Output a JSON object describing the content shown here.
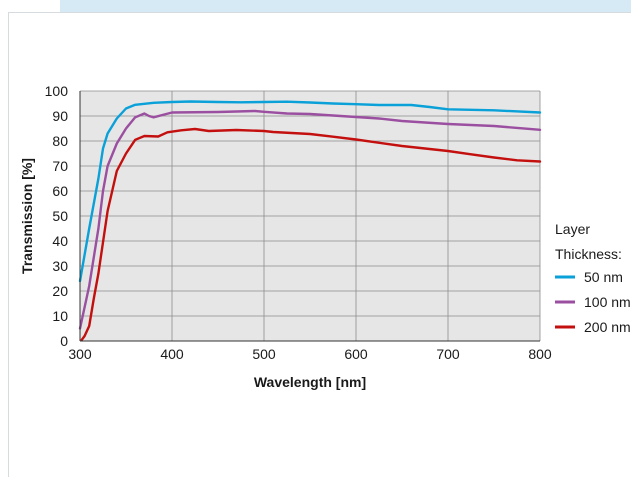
{
  "chart_data": {
    "type": "line",
    "xlabel": "Wavelength [nm]",
    "ylabel": "Transmission [%]",
    "xlim": [
      300,
      800
    ],
    "ylim": [
      0,
      100
    ],
    "x_ticks": [
      300,
      400,
      500,
      600,
      700,
      800
    ],
    "y_ticks": [
      0,
      10,
      20,
      30,
      40,
      50,
      60,
      70,
      80,
      90,
      100
    ],
    "grid": true,
    "plot_background": "#e6e6e6",
    "legend": {
      "position": "right",
      "title_lines": [
        "Layer",
        "Thickness:"
      ]
    },
    "series": [
      {
        "name": "50 nm",
        "color": "#0aa0d8",
        "points": [
          [
            300,
            24
          ],
          [
            310,
            45
          ],
          [
            320,
            65
          ],
          [
            325,
            77
          ],
          [
            330,
            83
          ],
          [
            340,
            89
          ],
          [
            350,
            93
          ],
          [
            360,
            94.5
          ],
          [
            380,
            95.3
          ],
          [
            400,
            95.6
          ],
          [
            420,
            95.8
          ],
          [
            450,
            95.6
          ],
          [
            475,
            95.5
          ],
          [
            500,
            95.6
          ],
          [
            525,
            95.7
          ],
          [
            550,
            95.4
          ],
          [
            575,
            95
          ],
          [
            600,
            94.7
          ],
          [
            625,
            94.4
          ],
          [
            660,
            94.4
          ],
          [
            680,
            93.6
          ],
          [
            700,
            92.7
          ],
          [
            750,
            92.3
          ],
          [
            800,
            91.4
          ]
        ]
      },
      {
        "name": "100 nm",
        "color": "#9b4fa0",
        "points": [
          [
            300,
            5
          ],
          [
            310,
            22
          ],
          [
            320,
            45
          ],
          [
            325,
            60
          ],
          [
            330,
            70
          ],
          [
            340,
            79
          ],
          [
            350,
            85
          ],
          [
            360,
            89.5
          ],
          [
            370,
            91
          ],
          [
            375,
            90
          ],
          [
            380,
            89.5
          ],
          [
            400,
            91.4
          ],
          [
            450,
            91.6
          ],
          [
            490,
            92
          ],
          [
            500,
            91.7
          ],
          [
            525,
            91
          ],
          [
            550,
            90.8
          ],
          [
            600,
            89.6
          ],
          [
            625,
            89
          ],
          [
            650,
            88
          ],
          [
            700,
            86.8
          ],
          [
            750,
            86
          ],
          [
            800,
            84.5
          ]
        ]
      },
      {
        "name": "200 nm",
        "color": "#c40f0f",
        "points": [
          [
            302,
            0.5
          ],
          [
            305,
            2
          ],
          [
            310,
            6
          ],
          [
            315,
            17
          ],
          [
            320,
            27
          ],
          [
            330,
            52
          ],
          [
            340,
            68
          ],
          [
            350,
            75
          ],
          [
            360,
            80.5
          ],
          [
            370,
            82
          ],
          [
            385,
            81.8
          ],
          [
            395,
            83.5
          ],
          [
            410,
            84.3
          ],
          [
            425,
            84.8
          ],
          [
            440,
            84
          ],
          [
            470,
            84.4
          ],
          [
            500,
            84
          ],
          [
            510,
            83.6
          ],
          [
            550,
            82.8
          ],
          [
            575,
            81.7
          ],
          [
            600,
            80.6
          ],
          [
            650,
            78
          ],
          [
            700,
            76
          ],
          [
            725,
            74.7
          ],
          [
            750,
            73.4
          ],
          [
            775,
            72.3
          ],
          [
            800,
            71.8
          ]
        ]
      }
    ]
  }
}
